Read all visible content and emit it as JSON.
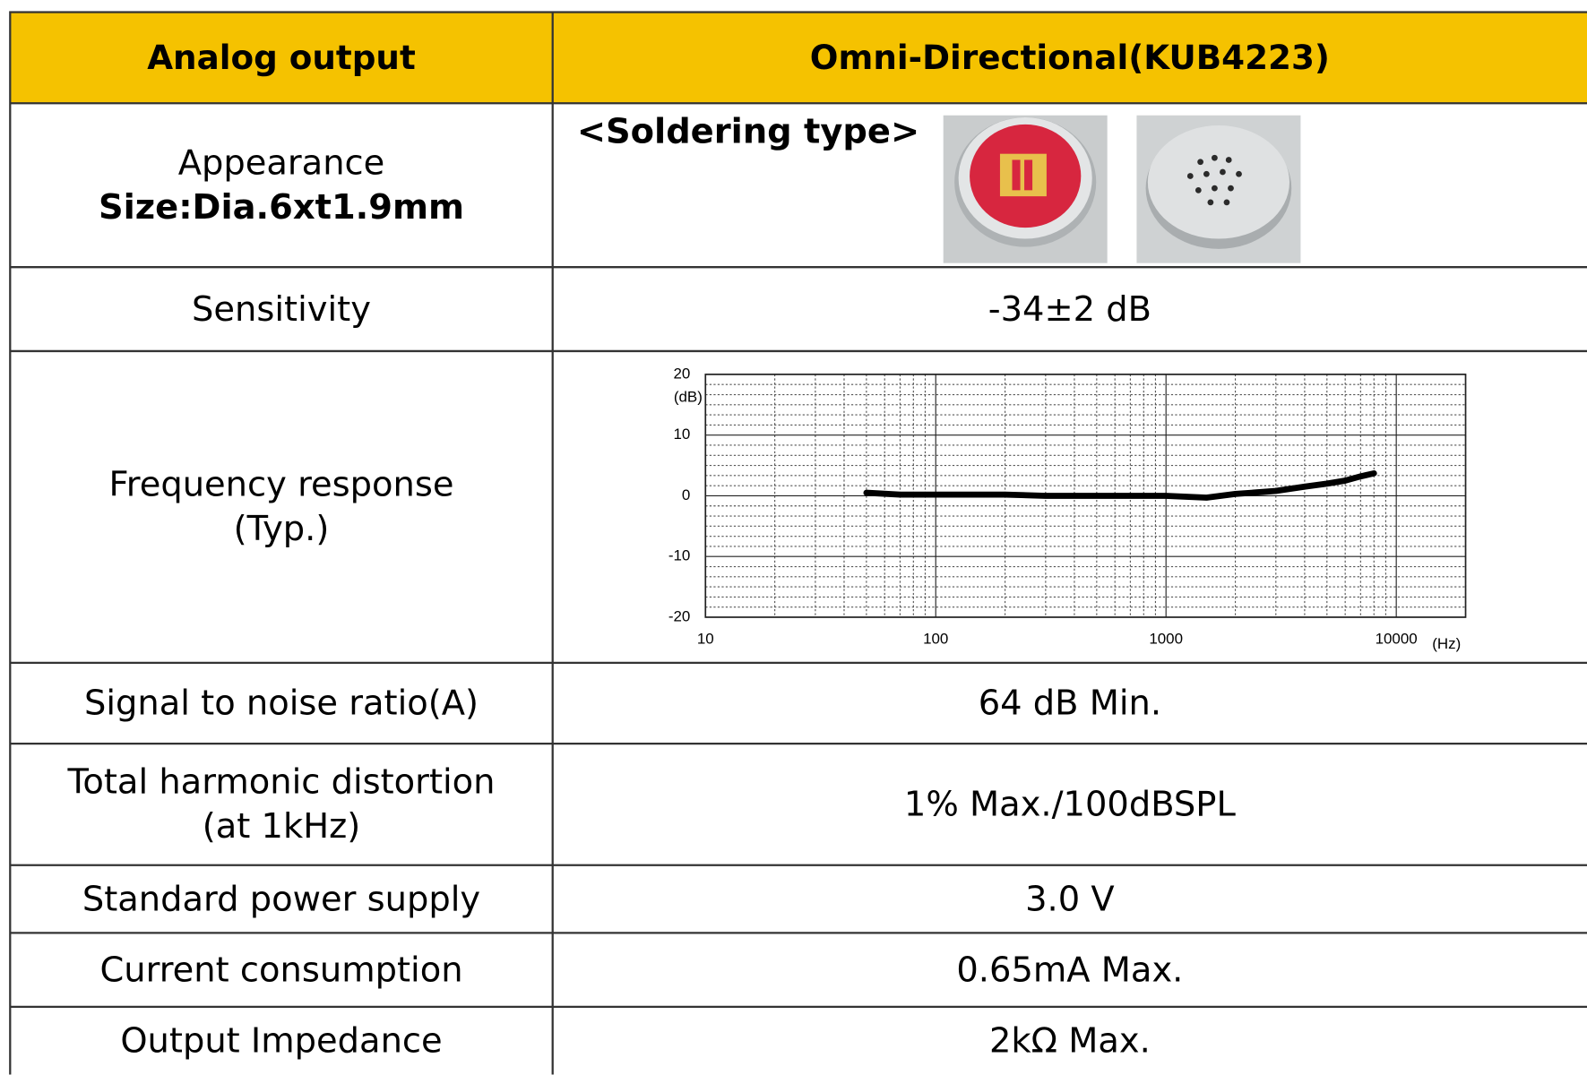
{
  "table": {
    "header": [
      "Analog output",
      "Omni-Directional(KUB4223)"
    ],
    "rows": [
      {
        "label": [
          "Appearance",
          "Size:Dia.6xt1.9mm"
        ],
        "value": "<Soldering type>"
      },
      {
        "label": [
          "Sensitivity"
        ],
        "value": "-34±2 dB"
      },
      {
        "label": [
          "Frequency response",
          "(Typ.)"
        ]
      },
      {
        "label": [
          "Signal to noise ratio(A)"
        ],
        "value": "64 dB Min."
      },
      {
        "label": [
          "Total harmonic distortion",
          "(at 1kHz)"
        ],
        "value": "1% Max./100dBSPL"
      },
      {
        "label": [
          "Standard power supply"
        ],
        "value": "3.0 V"
      },
      {
        "label": [
          "Current consumption"
        ],
        "value": "0.65mA Max."
      },
      {
        "label": [
          "Output Impedance"
        ],
        "value": "2kΩ Max."
      }
    ]
  },
  "chart_data": {
    "type": "line",
    "x_label": "(Hz)",
    "y_label": "(dB)",
    "x": [
      50,
      70,
      100,
      200,
      300,
      500,
      700,
      1000,
      1500,
      2000,
      3000,
      4000,
      5000,
      6000,
      7000,
      8000
    ],
    "series": [
      {
        "color": "#000000",
        "values": [
          0.5,
          0.2,
          0.2,
          0.2,
          0,
          0,
          0,
          0,
          -0.3,
          0.3,
          0.8,
          1.5,
          2,
          2.5,
          3.2,
          3.7
        ]
      }
    ],
    "log_x": true,
    "grid": true,
    "xlim": [
      10,
      20000
    ],
    "xticks": [
      10,
      100,
      1000,
      10000
    ],
    "ylim": [
      -20,
      20
    ],
    "yticks": [
      20,
      10,
      0,
      -10,
      -20
    ]
  }
}
